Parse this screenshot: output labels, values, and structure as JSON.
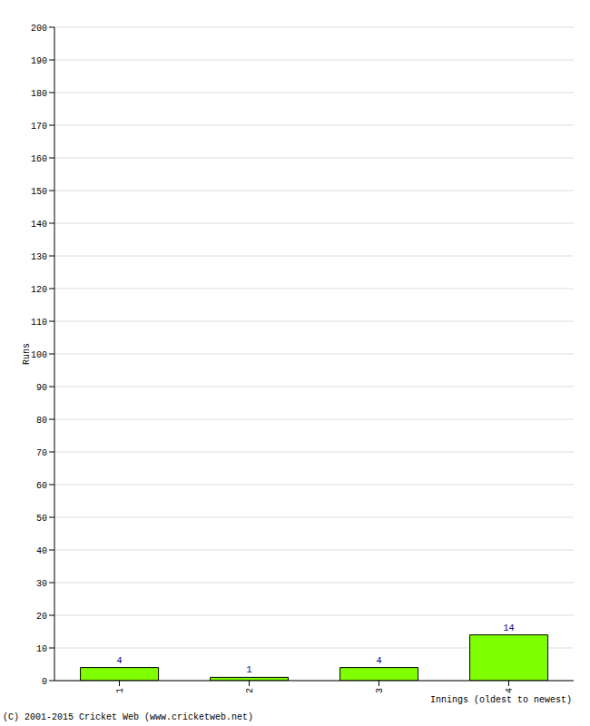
{
  "chart_data": {
    "type": "bar",
    "categories": [
      "1",
      "2",
      "3",
      "4"
    ],
    "values": [
      4,
      1,
      4,
      14
    ],
    "color": "#80ff00",
    "ylim": [
      0,
      200
    ],
    "yticks": [
      0,
      10,
      20,
      30,
      40,
      50,
      60,
      70,
      80,
      90,
      100,
      110,
      120,
      130,
      140,
      150,
      160,
      170,
      180,
      190,
      200
    ],
    "grid": true,
    "data_labels": true,
    "y_label": "Runs",
    "x_label": "Innings (oldest to newest)",
    "footer": "(C) 2001-2015 Cricket Web (www.cricketweb.net)"
  }
}
